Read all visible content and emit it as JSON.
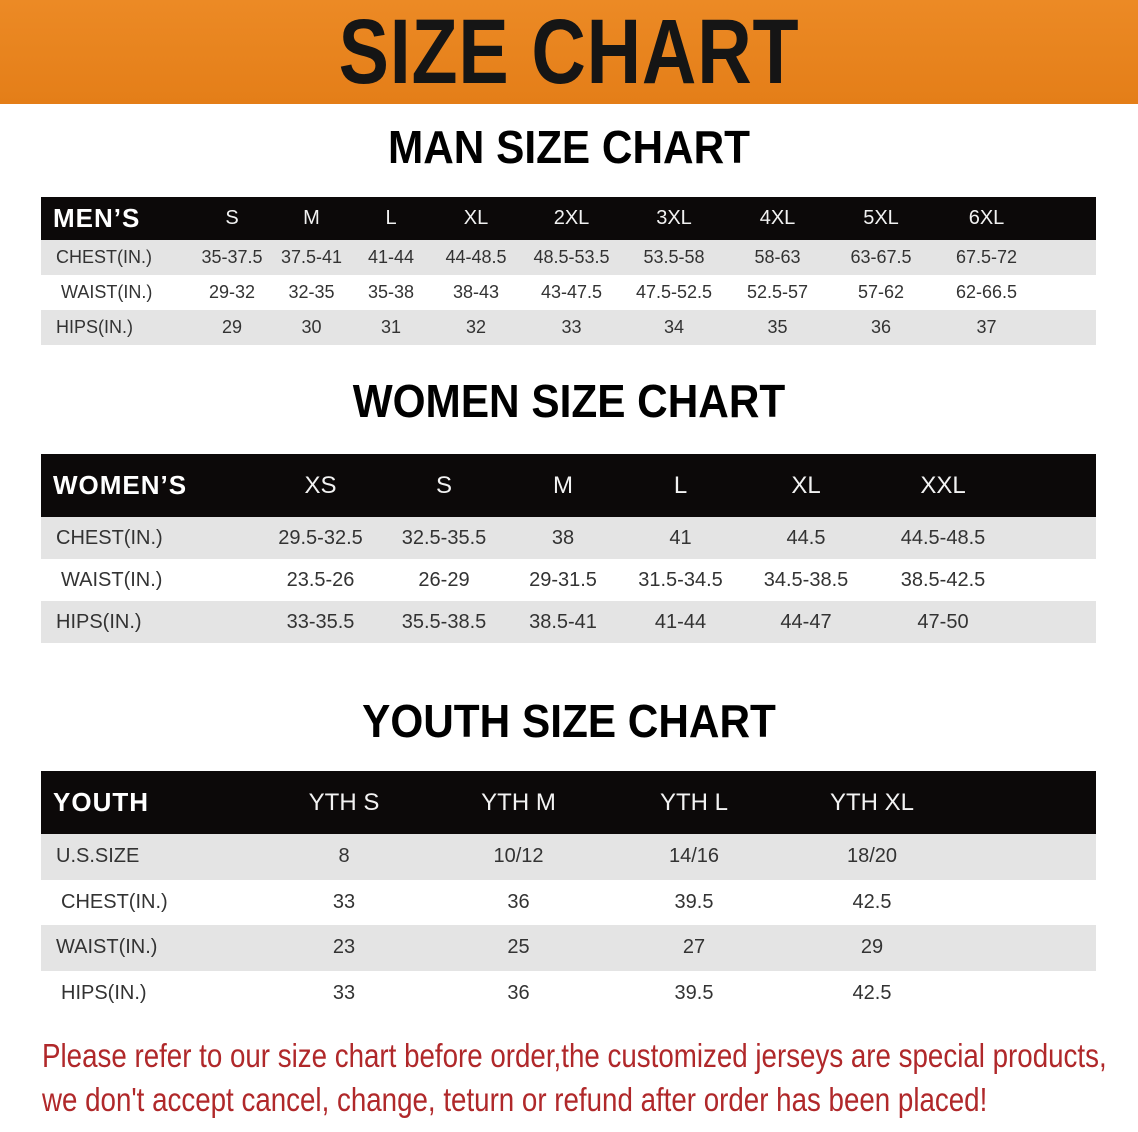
{
  "banner": {
    "title": "SIZE CHART",
    "color": "#e8831d"
  },
  "men": {
    "title": "MAN SIZE CHART",
    "headers": [
      "MEN’S",
      "S",
      "M",
      "L",
      "XL",
      "2XL",
      "3XL",
      "4XL",
      "5XL",
      "6XL"
    ],
    "rows": [
      [
        "CHEST(IN.)",
        "35-37.5",
        "37.5-41",
        "41-44",
        "44-48.5",
        "48.5-53.5",
        "53.5-58",
        "58-63",
        "63-67.5",
        "67.5-72"
      ],
      [
        "WAIST(IN.)",
        "29-32",
        "32-35",
        "35-38",
        "38-43",
        "43-47.5",
        "47.5-52.5",
        "52.5-57",
        "57-62",
        "62-66.5"
      ],
      [
        "HIPS(IN.)",
        "29",
        "30",
        "31",
        "32",
        "33",
        "34",
        "35",
        "36",
        "37"
      ]
    ]
  },
  "women": {
    "title": "WOMEN SIZE CHART",
    "headers": [
      "WOMEN’S",
      "XS",
      "S",
      "M",
      "L",
      "XL",
      "XXL"
    ],
    "rows": [
      [
        "CHEST(IN.)",
        "29.5-32.5",
        "32.5-35.5",
        "38",
        "41",
        "44.5",
        "44.5-48.5"
      ],
      [
        "WAIST(IN.)",
        "23.5-26",
        "26-29",
        "29-31.5",
        "31.5-34.5",
        "34.5-38.5",
        "38.5-42.5"
      ],
      [
        "HIPS(IN.)",
        "33-35.5",
        "35.5-38.5",
        "38.5-41",
        "41-44",
        "44-47",
        "47-50"
      ]
    ]
  },
  "youth": {
    "title": "YOUTH SIZE CHART",
    "headers": [
      "YOUTH",
      "YTH S",
      "YTH M",
      "YTH L",
      "YTH XL"
    ],
    "rows": [
      [
        "U.S.SIZE",
        "8",
        "10/12",
        "14/16",
        "18/20"
      ],
      [
        "CHEST(IN.)",
        "33",
        "36",
        "39.5",
        "42.5"
      ],
      [
        "WAIST(IN.)",
        "23",
        "25",
        "27",
        "29"
      ],
      [
        "HIPS(IN.)",
        "33",
        "36",
        "39.5",
        "42.5"
      ]
    ]
  },
  "notice": {
    "line1": "Please refer to our size chart before order,the customized jerseys are special products,",
    "line2": "we don't accept cancel, change, teturn or refund after order has been placed!",
    "color": "#b0282a"
  }
}
